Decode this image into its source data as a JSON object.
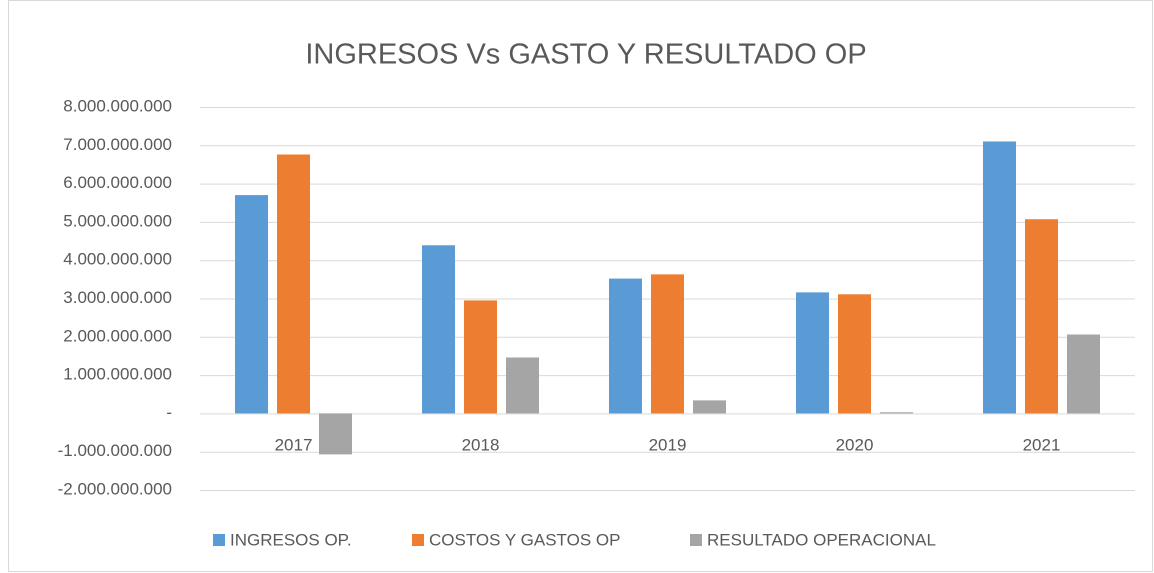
{
  "chart_data": {
    "type": "bar",
    "title": "INGRESOS Vs GASTO Y RESULTADO OP",
    "categories": [
      "2017",
      "2018",
      "2019",
      "2020",
      "2021"
    ],
    "series": [
      {
        "name": "INGRESOS OP.",
        "color": "#5b9bd5",
        "values": [
          5700000000,
          4390000000,
          3520000000,
          3160000000,
          7100000000
        ]
      },
      {
        "name": "COSTOS Y GASTOS OP",
        "color": "#ed7d31",
        "values": [
          6760000000,
          2950000000,
          3630000000,
          3110000000,
          5070000000
        ]
      },
      {
        "name": "RESULTADO OPERACIONAL",
        "color": "#a5a5a5",
        "values": [
          -1070000000,
          1460000000,
          340000000,
          30000000,
          2060000000
        ]
      }
    ],
    "ylim": [
      -2000000000,
      8000000000
    ],
    "yticks": [
      {
        "value": -2000000000,
        "label": "-2.000.000.000"
      },
      {
        "value": -1000000000,
        "label": "-1.000.000.000"
      },
      {
        "value": 0,
        "label": "-"
      },
      {
        "value": 1000000000,
        "label": "1.000.000.000"
      },
      {
        "value": 2000000000,
        "label": "2.000.000.000"
      },
      {
        "value": 3000000000,
        "label": "3.000.000.000"
      },
      {
        "value": 4000000000,
        "label": "4.000.000.000"
      },
      {
        "value": 5000000000,
        "label": "5.000.000.000"
      },
      {
        "value": 6000000000,
        "label": "6.000.000.000"
      },
      {
        "value": 7000000000,
        "label": "7.000.000.000"
      },
      {
        "value": 8000000000,
        "label": "8.000.000.000"
      }
    ],
    "grid": true,
    "legend": "bottom"
  }
}
